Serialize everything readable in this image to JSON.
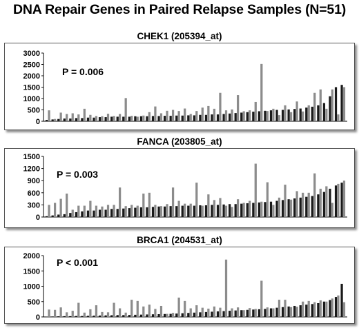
{
  "title": "DNA Repair Genes in Paired Relapse Samples (N=51)",
  "colors": {
    "diagnosis_bar": "#1a1a1a",
    "relapse_bar": "#8c8c8c",
    "axis": "#000000"
  },
  "chart_data": [
    {
      "type": "bar",
      "title": "CHEK1 (205394_at)",
      "annotation": "P = 0.006",
      "ylim": [
        0,
        3000
      ],
      "yticks": [
        "0",
        "500",
        "1000",
        "1500",
        "2000",
        "2500",
        "3000"
      ],
      "grid": false,
      "series": [
        {
          "values": [
            60,
            80,
            100,
            120,
            120,
            140,
            140,
            160,
            160,
            180,
            180,
            200,
            200,
            200,
            200,
            220,
            220,
            220,
            230,
            230,
            240,
            240,
            250,
            250,
            260,
            260,
            280,
            280,
            300,
            300,
            320,
            340,
            360,
            380,
            400,
            420,
            440,
            460,
            480,
            500,
            500,
            520,
            540,
            560,
            600,
            640,
            700,
            800,
            1100,
            1500,
            1600
          ]
        },
        {
          "values": [
            480,
            100,
            380,
            320,
            350,
            300,
            550,
            280,
            230,
            220,
            330,
            230,
            320,
            1020,
            240,
            200,
            250,
            400,
            650,
            350,
            460,
            500,
            450,
            560,
            320,
            450,
            600,
            670,
            550,
            1250,
            480,
            520,
            1150,
            440,
            480,
            850,
            2520,
            450,
            550,
            270,
            700,
            400,
            870,
            430,
            700,
            1250,
            1400,
            550,
            1400,
            300,
            1500
          ]
        }
      ]
    },
    {
      "type": "bar",
      "title": "FANCA (203805_at)",
      "annotation": "P = 0.003",
      "ylim": [
        0,
        1500
      ],
      "yticks": [
        "0",
        "300",
        "600",
        "900",
        "1200",
        "1500"
      ],
      "grid": false,
      "series": [
        {
          "values": [
            20,
            40,
            60,
            70,
            100,
            120,
            140,
            160,
            160,
            180,
            180,
            200,
            200,
            210,
            220,
            230,
            240,
            240,
            250,
            260,
            260,
            270,
            270,
            280,
            280,
            280,
            290,
            290,
            300,
            300,
            310,
            320,
            320,
            330,
            340,
            350,
            360,
            370,
            380,
            400,
            420,
            440,
            460,
            480,
            500,
            520,
            560,
            620,
            700,
            780,
            850
          ]
        },
        {
          "values": [
            300,
            350,
            450,
            580,
            180,
            280,
            280,
            400,
            280,
            260,
            300,
            300,
            730,
            270,
            300,
            280,
            580,
            600,
            300,
            270,
            320,
            730,
            400,
            330,
            330,
            850,
            280,
            560,
            420,
            470,
            280,
            250,
            440,
            350,
            400,
            1320,
            380,
            860,
            300,
            480,
            800,
            430,
            640,
            600,
            600,
            1080,
            700,
            760,
            350,
            820,
            900
          ]
        }
      ]
    },
    {
      "type": "bar",
      "title": "BRCA1 (204531_at)",
      "annotation": "P < 0.001",
      "ylim": [
        0,
        2000
      ],
      "yticks": [
        "0",
        "500",
        "1000",
        "1500",
        "2000"
      ],
      "grid": false,
      "series": [
        {
          "values": [
            10,
            15,
            20,
            25,
            25,
            30,
            30,
            35,
            40,
            45,
            50,
            55,
            60,
            60,
            65,
            70,
            75,
            80,
            85,
            90,
            95,
            100,
            110,
            120,
            130,
            140,
            150,
            160,
            170,
            180,
            190,
            200,
            210,
            220,
            230,
            240,
            250,
            260,
            280,
            300,
            320,
            340,
            360,
            380,
            400,
            420,
            450,
            500,
            550,
            650,
            1080
          ]
        },
        {
          "values": [
            240,
            230,
            310,
            150,
            200,
            460,
            140,
            250,
            380,
            160,
            150,
            460,
            280,
            140,
            560,
            520,
            340,
            400,
            260,
            360,
            100,
            130,
            630,
            520,
            280,
            380,
            300,
            270,
            340,
            300,
            1870,
            280,
            310,
            220,
            290,
            260,
            1180,
            310,
            280,
            560,
            560,
            320,
            330,
            500,
            520,
            480,
            540,
            500,
            600,
            700,
            480
          ]
        }
      ]
    }
  ]
}
